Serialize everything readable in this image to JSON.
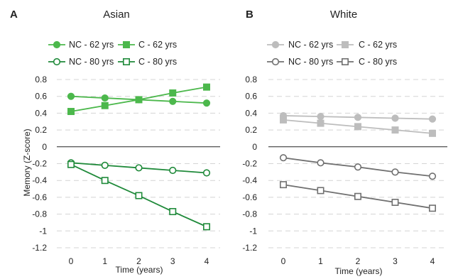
{
  "chart_data": [
    {
      "panel": "A",
      "title": "Asian",
      "type": "line",
      "xlabel": "Time (years)",
      "ylabel": "Memory (Z-score)",
      "x": [
        0,
        1,
        2,
        3,
        4
      ],
      "xticks": [
        "0",
        "1",
        "2",
        "3",
        "4"
      ],
      "ylim": [
        -1.2,
        0.8
      ],
      "yticks": [
        "0.8",
        "0.6",
        "0.4",
        "0.2",
        "0",
        "-0.2",
        "-0.4",
        "-0.6",
        "-0.8",
        "-1",
        "-1.2"
      ],
      "grid": "horizontal dashed",
      "legend_position": "top",
      "series": [
        {
          "name": "NC - 62 yrs",
          "marker": "circle",
          "filled": true,
          "color": "#4cb84c",
          "values": [
            0.6,
            0.58,
            0.56,
            0.54,
            0.52
          ]
        },
        {
          "name": "C - 62 yrs",
          "marker": "square",
          "filled": true,
          "color": "#4cb84c",
          "values": [
            0.42,
            0.49,
            0.56,
            0.64,
            0.71
          ]
        },
        {
          "name": "NC - 80 yrs",
          "marker": "circle",
          "filled": false,
          "color": "#1f8a3a",
          "values": [
            -0.19,
            -0.22,
            -0.25,
            -0.28,
            -0.31
          ]
        },
        {
          "name": "C - 80 yrs",
          "marker": "square",
          "filled": false,
          "color": "#1f8a3a",
          "values": [
            -0.21,
            -0.4,
            -0.58,
            -0.77,
            -0.95
          ]
        }
      ]
    },
    {
      "panel": "B",
      "title": "White",
      "type": "line",
      "xlabel": "Time (years)",
      "ylabel": "",
      "x": [
        0,
        1,
        2,
        3,
        4
      ],
      "xticks": [
        "0",
        "1",
        "2",
        "3",
        "4"
      ],
      "ylim": [
        -1.2,
        0.8
      ],
      "yticks": [
        "0.8",
        "0.6",
        "0.4",
        "0.2",
        "0",
        "-0.2",
        "-0.4",
        "-0.6",
        "-0.8",
        "-1",
        "-1.2"
      ],
      "grid": "horizontal dashed",
      "legend_position": "top",
      "series": [
        {
          "name": "NC - 62 yrs",
          "marker": "circle",
          "filled": true,
          "color": "#bdbdbd",
          "values": [
            0.37,
            0.36,
            0.35,
            0.34,
            0.33
          ]
        },
        {
          "name": "C - 62 yrs",
          "marker": "square",
          "filled": true,
          "color": "#bdbdbd",
          "values": [
            0.32,
            0.28,
            0.24,
            0.2,
            0.16
          ]
        },
        {
          "name": "NC - 80 yrs",
          "marker": "circle",
          "filled": false,
          "color": "#707070",
          "values": [
            -0.13,
            -0.19,
            -0.24,
            -0.3,
            -0.35
          ]
        },
        {
          "name": "C - 80 yrs",
          "marker": "square",
          "filled": false,
          "color": "#707070",
          "values": [
            -0.45,
            -0.52,
            -0.59,
            -0.66,
            -0.73
          ]
        }
      ]
    }
  ]
}
